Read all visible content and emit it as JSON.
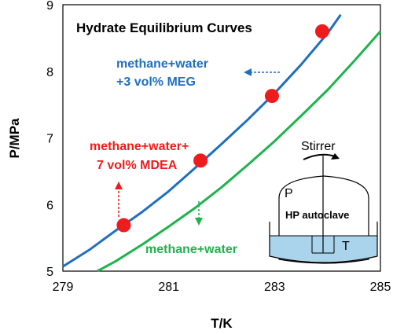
{
  "chart_data": {
    "type": "line",
    "title": "Hydrate Equilibrium Curves",
    "xlabel": "T/K",
    "ylabel": "P/MPa",
    "xlim": [
      279,
      285
    ],
    "ylim": [
      5,
      9
    ],
    "xticks": [
      "279",
      "281",
      "283",
      "285"
    ],
    "yticks": [
      "5",
      "6",
      "7",
      "8",
      "9"
    ],
    "grid": false,
    "series": [
      {
        "name": "methane+water +3 vol% MEG",
        "color": "#1f6fbf",
        "x": [
          279.0,
          279.5,
          280.0,
          280.5,
          281.0,
          281.5,
          282.0,
          282.5,
          283.0,
          283.5,
          284.0,
          284.25
        ],
        "y": [
          5.07,
          5.32,
          5.61,
          5.89,
          6.2,
          6.55,
          6.91,
          7.28,
          7.67,
          8.1,
          8.57,
          8.85
        ]
      },
      {
        "name": "methane+water",
        "color": "#1db34d",
        "x": [
          279.65,
          280.0,
          280.5,
          281.0,
          281.5,
          282.0,
          282.5,
          283.0,
          283.5,
          284.0,
          284.5,
          285.0
        ],
        "y": [
          5.0,
          5.15,
          5.4,
          5.67,
          5.95,
          6.26,
          6.6,
          6.95,
          7.33,
          7.72,
          8.15,
          8.6
        ]
      },
      {
        "name": "methane+water+ 7 vol% MDEA",
        "color": "#ee1c1c",
        "marker": "circle",
        "x": [
          280.15,
          281.6,
          282.95,
          283.9
        ],
        "y": [
          5.69,
          6.66,
          7.63,
          8.6
        ]
      }
    ],
    "annotations": {
      "meg_line1": "methane+water",
      "meg_line2": "+3 vol% MEG",
      "mdea_line1": "methane+water+",
      "mdea_line2": "7 vol% MDEA",
      "water": "methane+water"
    },
    "inset": {
      "stirrer": "Stirrer",
      "pressure": "P",
      "vessel": "HP autoclave",
      "temperature": "T"
    }
  }
}
